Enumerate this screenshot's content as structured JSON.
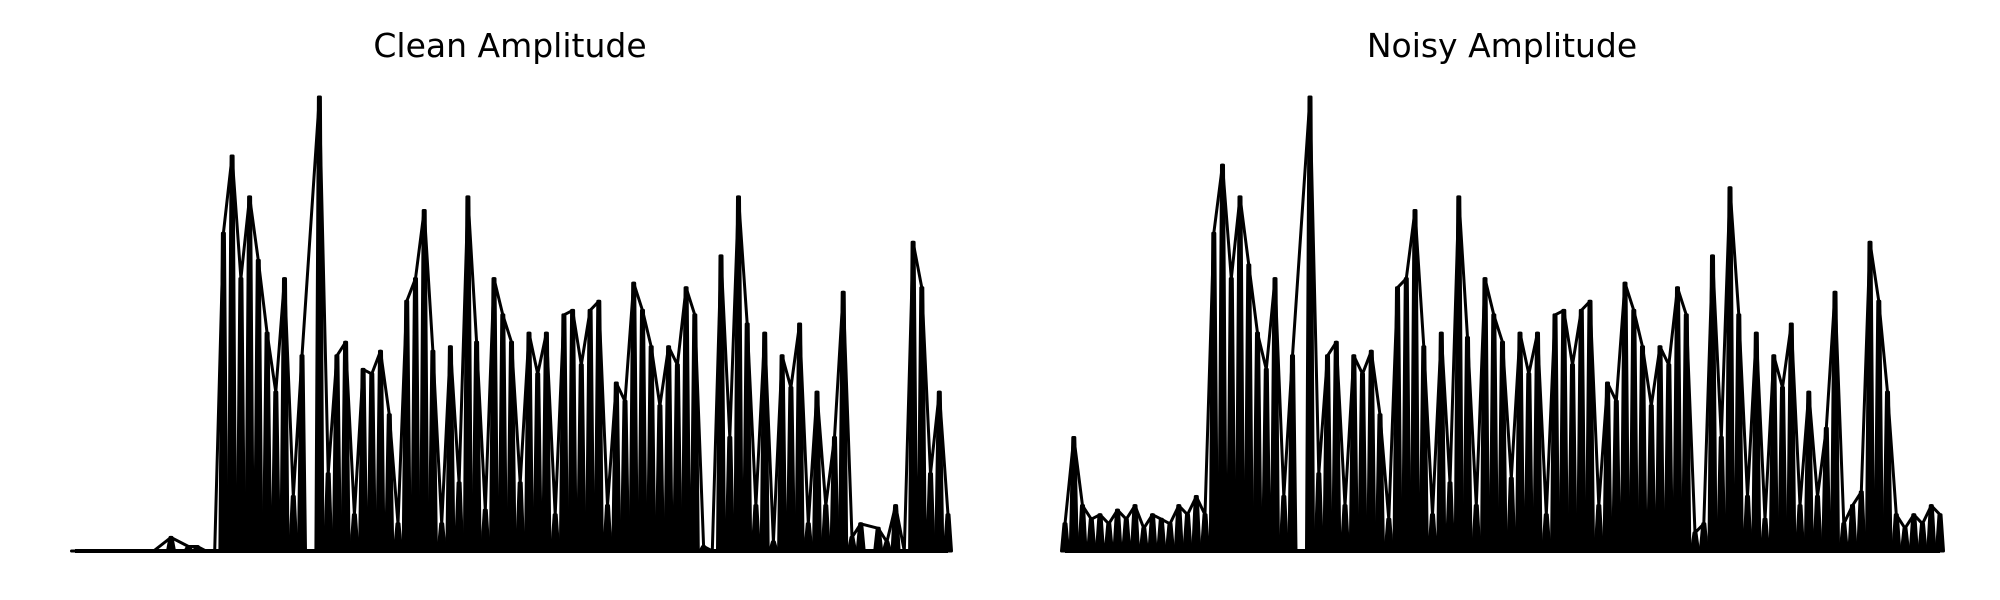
{
  "figure": {
    "background": "#ffffff",
    "line_color": "#000000"
  },
  "chart_data": [
    {
      "type": "area",
      "title": "Clean Amplitude",
      "xlabel": "",
      "ylabel": "",
      "axes_visible": false,
      "grid": false,
      "ylim": [
        0,
        1
      ],
      "x": [
        0,
        9,
        11,
        13,
        14,
        15,
        16,
        17,
        18,
        19,
        20,
        21,
        22,
        23,
        24,
        25,
        26,
        28,
        29,
        30,
        31,
        32,
        33,
        34,
        35,
        36,
        37,
        38,
        39,
        40,
        41,
        42,
        43,
        44,
        45,
        46,
        47,
        48,
        49,
        50,
        51,
        52,
        53,
        54,
        55,
        56,
        57,
        58,
        59,
        60,
        61,
        62,
        63,
        64,
        65,
        66,
        67,
        68,
        69,
        70,
        71,
        72,
        73,
        74,
        75,
        76,
        77,
        78,
        79,
        80,
        81,
        82,
        83,
        84,
        85,
        86,
        87,
        88,
        89,
        90,
        92,
        93,
        94,
        95,
        96,
        97,
        98,
        99,
        100
      ],
      "values": [
        0.0,
        0.0,
        0.03,
        0.01,
        0.01,
        0.0,
        0.0,
        0.7,
        0.87,
        0.6,
        0.78,
        0.64,
        0.48,
        0.35,
        0.6,
        0.12,
        0.43,
        1.0,
        0.17,
        0.43,
        0.46,
        0.08,
        0.4,
        0.39,
        0.44,
        0.3,
        0.06,
        0.55,
        0.6,
        0.75,
        0.44,
        0.06,
        0.45,
        0.15,
        0.78,
        0.46,
        0.09,
        0.6,
        0.52,
        0.46,
        0.15,
        0.48,
        0.39,
        0.48,
        0.08,
        0.52,
        0.53,
        0.41,
        0.53,
        0.55,
        0.1,
        0.37,
        0.33,
        0.59,
        0.53,
        0.45,
        0.32,
        0.45,
        0.41,
        0.58,
        0.52,
        0.01,
        0.0,
        0.65,
        0.25,
        0.78,
        0.5,
        0.1,
        0.48,
        0.02,
        0.43,
        0.36,
        0.5,
        0.06,
        0.35,
        0.1,
        0.25,
        0.57,
        0.03,
        0.06,
        0.05,
        0.02,
        0.1,
        0.0,
        0.68,
        0.58,
        0.17,
        0.35,
        0.08
      ]
    },
    {
      "type": "area",
      "title": "Noisy Amplitude",
      "xlabel": "",
      "ylabel": "",
      "axes_visible": false,
      "grid": false,
      "ylim": [
        0,
        1
      ],
      "x": [
        0,
        1,
        2,
        3,
        4,
        5,
        6,
        7,
        8,
        9,
        10,
        11,
        12,
        13,
        14,
        15,
        16,
        17,
        18,
        19,
        20,
        21,
        22,
        23,
        24,
        25,
        26,
        28,
        29,
        30,
        31,
        32,
        33,
        34,
        35,
        36,
        37,
        38,
        39,
        40,
        41,
        42,
        43,
        44,
        45,
        46,
        47,
        48,
        49,
        50,
        51,
        52,
        53,
        54,
        55,
        56,
        57,
        58,
        59,
        60,
        61,
        62,
        63,
        64,
        65,
        66,
        67,
        68,
        69,
        70,
        71,
        72,
        73,
        74,
        75,
        76,
        77,
        78,
        79,
        80,
        81,
        82,
        83,
        84,
        85,
        86,
        87,
        88,
        89,
        90,
        91,
        92,
        93,
        94,
        95,
        96,
        97,
        98,
        99,
        100
      ],
      "values": [
        0.06,
        0.25,
        0.1,
        0.07,
        0.08,
        0.06,
        0.09,
        0.07,
        0.1,
        0.05,
        0.08,
        0.07,
        0.06,
        0.1,
        0.08,
        0.12,
        0.08,
        0.7,
        0.85,
        0.6,
        0.78,
        0.63,
        0.48,
        0.4,
        0.6,
        0.12,
        0.43,
        1.0,
        0.17,
        0.43,
        0.46,
        0.1,
        0.43,
        0.39,
        0.44,
        0.3,
        0.07,
        0.58,
        0.6,
        0.75,
        0.45,
        0.08,
        0.48,
        0.15,
        0.78,
        0.47,
        0.1,
        0.6,
        0.52,
        0.46,
        0.16,
        0.48,
        0.39,
        0.48,
        0.08,
        0.52,
        0.53,
        0.41,
        0.53,
        0.55,
        0.1,
        0.37,
        0.33,
        0.59,
        0.53,
        0.45,
        0.32,
        0.45,
        0.41,
        0.58,
        0.52,
        0.04,
        0.06,
        0.65,
        0.25,
        0.8,
        0.52,
        0.12,
        0.48,
        0.07,
        0.43,
        0.36,
        0.5,
        0.1,
        0.35,
        0.12,
        0.27,
        0.57,
        0.06,
        0.1,
        0.13,
        0.68,
        0.55,
        0.35,
        0.08,
        0.05,
        0.08,
        0.06,
        0.1,
        0.08
      ]
    }
  ]
}
